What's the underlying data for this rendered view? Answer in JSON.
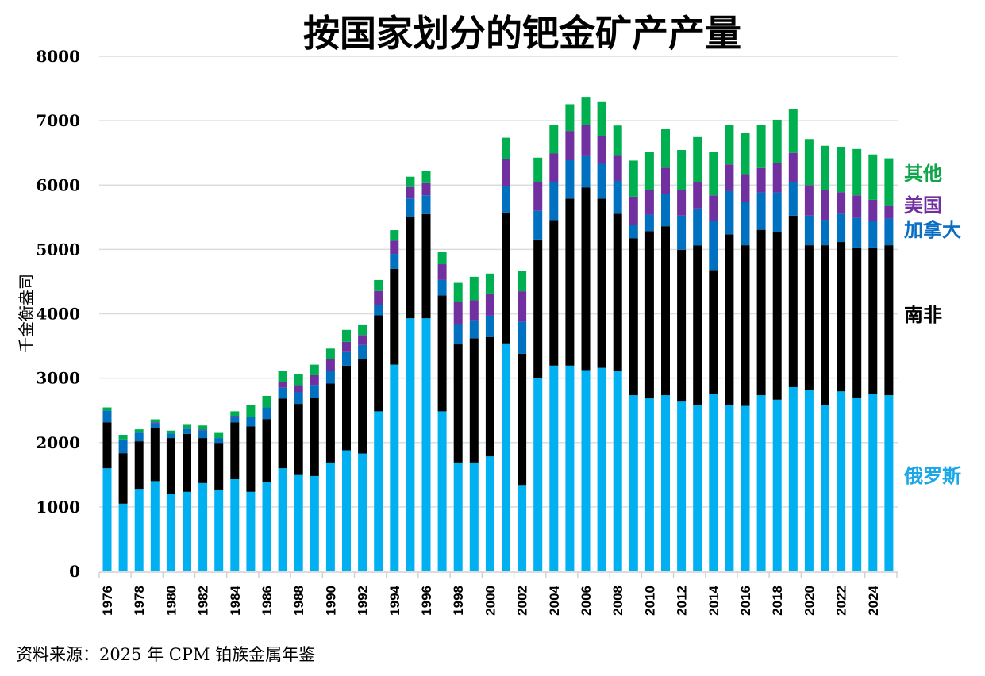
{
  "chart_data": {
    "type": "bar",
    "stacked": true,
    "title": "按国家划分的钯金矿产产量",
    "xlabel": "",
    "ylabel": "千金衡盎司",
    "ylim": [
      0,
      8000
    ],
    "yticks": [
      0,
      1000,
      2000,
      3000,
      4000,
      5000,
      6000,
      7000,
      8000
    ],
    "grid": true,
    "legend_placement": "right",
    "source": "资料来源：2025 年 CPM 铂族金属年鉴",
    "categories": [
      "1976",
      "1977",
      "1978",
      "1979",
      "1980",
      "1981",
      "1982",
      "1983",
      "1984",
      "1985",
      "1986",
      "1987",
      "1988",
      "1989",
      "1990",
      "1991",
      "1992",
      "1993",
      "1994",
      "1995",
      "1996",
      "1997",
      "1998",
      "1999",
      "2000",
      "2001",
      "2002",
      "2003",
      "2004",
      "2005",
      "2006",
      "2007",
      "2008",
      "2009",
      "2010",
      "2011",
      "2012",
      "2013",
      "2014",
      "2015",
      "2016",
      "2017",
      "2018",
      "2019",
      "2020",
      "2021",
      "2022",
      "2023",
      "2024",
      "2025"
    ],
    "xtick_labels": [
      "1976",
      "1978",
      "1980",
      "1982",
      "1984",
      "1986",
      "1988",
      "1990",
      "1992",
      "1994",
      "1996",
      "1998",
      "2000",
      "2002",
      "2004",
      "2006",
      "2008",
      "2010",
      "2012",
      "2014",
      "2016",
      "2018",
      "2020",
      "2022",
      "2024"
    ],
    "series": [
      {
        "name": "俄罗斯",
        "color": "#00b0f0",
        "values": [
          1600,
          1050,
          1280,
          1400,
          1200,
          1235,
          1370,
          1270,
          1430,
          1235,
          1385,
          1600,
          1495,
          1480,
          1690,
          1880,
          1830,
          2485,
          3210,
          3930,
          3930,
          2485,
          1690,
          1690,
          1785,
          3540,
          1340,
          3000,
          3195,
          3195,
          3125,
          3160,
          3110,
          2735,
          2685,
          2735,
          2635,
          2585,
          2750,
          2585,
          2570,
          2735,
          2665,
          2860,
          2810,
          2585,
          2795,
          2700,
          2760,
          2735
        ]
      },
      {
        "name": "南非",
        "color": "#000000",
        "values": [
          715,
          785,
          740,
          830,
          870,
          900,
          700,
          725,
          885,
          1015,
          980,
          1085,
          1105,
          1215,
          1225,
          1315,
          1470,
          1490,
          1490,
          1580,
          1620,
          1800,
          1835,
          1930,
          1855,
          2035,
          2040,
          2155,
          2260,
          2595,
          2835,
          2630,
          2445,
          2440,
          2600,
          2625,
          2360,
          2475,
          1930,
          2650,
          2495,
          2570,
          2610,
          2665,
          2255,
          2480,
          2320,
          2330,
          2270,
          2330
        ]
      },
      {
        "name": "加拿大",
        "color": "#0070c0",
        "values": [
          180,
          215,
          135,
          70,
          70,
          80,
          120,
          75,
          85,
          145,
          180,
          165,
          180,
          200,
          200,
          210,
          215,
          165,
          230,
          280,
          290,
          240,
          315,
          280,
          330,
          410,
          495,
          445,
          590,
          595,
          500,
          540,
          510,
          210,
          255,
          495,
          530,
          575,
          760,
          670,
          670,
          580,
          610,
          515,
          460,
          395,
          440,
          460,
          410,
          415
        ]
      },
      {
        "name": "美国",
        "color": "#7030a0",
        "values": [
          0,
          0,
          0,
          15,
          0,
          0,
          10,
          0,
          15,
          0,
          0,
          95,
          110,
          150,
          180,
          160,
          155,
          215,
          205,
          180,
          190,
          245,
          340,
          310,
          345,
          420,
          475,
          445,
          445,
          455,
          480,
          430,
          400,
          435,
          385,
          415,
          400,
          415,
          400,
          415,
          435,
          380,
          460,
          460,
          475,
          465,
          335,
          350,
          330,
          195
        ]
      },
      {
        "name": "其他",
        "color": "#00b050",
        "values": [
          50,
          70,
          50,
          45,
          45,
          60,
          65,
          80,
          70,
          190,
          180,
          165,
          175,
          165,
          165,
          185,
          165,
          170,
          165,
          160,
          185,
          195,
          300,
          365,
          310,
          330,
          310,
          380,
          440,
          415,
          430,
          540,
          460,
          560,
          585,
          600,
          620,
          695,
          670,
          620,
          645,
          670,
          670,
          675,
          715,
          685,
          705,
          720,
          705,
          740
        ]
      }
    ]
  }
}
